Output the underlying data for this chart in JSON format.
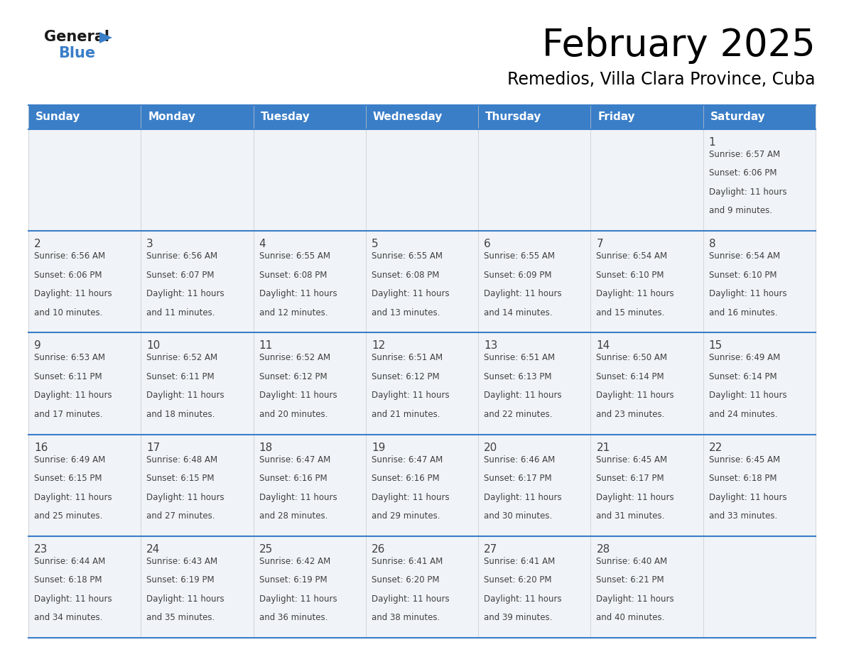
{
  "title": "February 2025",
  "subtitle": "Remedios, Villa Clara Province, Cuba",
  "header_bg": "#3a7ec8",
  "header_text_color": "#ffffff",
  "cell_bg": "#f0f4f8",
  "divider_color": "#3a7ec8",
  "text_color": "#404040",
  "day_headers": [
    "Sunday",
    "Monday",
    "Tuesday",
    "Wednesday",
    "Thursday",
    "Friday",
    "Saturday"
  ],
  "days": [
    {
      "day": 1,
      "col": 6,
      "row": 0,
      "sunrise": "6:57 AM",
      "sunset": "6:06 PM",
      "daylight_hours": 11,
      "daylight_minutes": 9
    },
    {
      "day": 2,
      "col": 0,
      "row": 1,
      "sunrise": "6:56 AM",
      "sunset": "6:06 PM",
      "daylight_hours": 11,
      "daylight_minutes": 10
    },
    {
      "day": 3,
      "col": 1,
      "row": 1,
      "sunrise": "6:56 AM",
      "sunset": "6:07 PM",
      "daylight_hours": 11,
      "daylight_minutes": 11
    },
    {
      "day": 4,
      "col": 2,
      "row": 1,
      "sunrise": "6:55 AM",
      "sunset": "6:08 PM",
      "daylight_hours": 11,
      "daylight_minutes": 12
    },
    {
      "day": 5,
      "col": 3,
      "row": 1,
      "sunrise": "6:55 AM",
      "sunset": "6:08 PM",
      "daylight_hours": 11,
      "daylight_minutes": 13
    },
    {
      "day": 6,
      "col": 4,
      "row": 1,
      "sunrise": "6:55 AM",
      "sunset": "6:09 PM",
      "daylight_hours": 11,
      "daylight_minutes": 14
    },
    {
      "day": 7,
      "col": 5,
      "row": 1,
      "sunrise": "6:54 AM",
      "sunset": "6:10 PM",
      "daylight_hours": 11,
      "daylight_minutes": 15
    },
    {
      "day": 8,
      "col": 6,
      "row": 1,
      "sunrise": "6:54 AM",
      "sunset": "6:10 PM",
      "daylight_hours": 11,
      "daylight_minutes": 16
    },
    {
      "day": 9,
      "col": 0,
      "row": 2,
      "sunrise": "6:53 AM",
      "sunset": "6:11 PM",
      "daylight_hours": 11,
      "daylight_minutes": 17
    },
    {
      "day": 10,
      "col": 1,
      "row": 2,
      "sunrise": "6:52 AM",
      "sunset": "6:11 PM",
      "daylight_hours": 11,
      "daylight_minutes": 18
    },
    {
      "day": 11,
      "col": 2,
      "row": 2,
      "sunrise": "6:52 AM",
      "sunset": "6:12 PM",
      "daylight_hours": 11,
      "daylight_minutes": 20
    },
    {
      "day": 12,
      "col": 3,
      "row": 2,
      "sunrise": "6:51 AM",
      "sunset": "6:12 PM",
      "daylight_hours": 11,
      "daylight_minutes": 21
    },
    {
      "day": 13,
      "col": 4,
      "row": 2,
      "sunrise": "6:51 AM",
      "sunset": "6:13 PM",
      "daylight_hours": 11,
      "daylight_minutes": 22
    },
    {
      "day": 14,
      "col": 5,
      "row": 2,
      "sunrise": "6:50 AM",
      "sunset": "6:14 PM",
      "daylight_hours": 11,
      "daylight_minutes": 23
    },
    {
      "day": 15,
      "col": 6,
      "row": 2,
      "sunrise": "6:49 AM",
      "sunset": "6:14 PM",
      "daylight_hours": 11,
      "daylight_minutes": 24
    },
    {
      "day": 16,
      "col": 0,
      "row": 3,
      "sunrise": "6:49 AM",
      "sunset": "6:15 PM",
      "daylight_hours": 11,
      "daylight_minutes": 25
    },
    {
      "day": 17,
      "col": 1,
      "row": 3,
      "sunrise": "6:48 AM",
      "sunset": "6:15 PM",
      "daylight_hours": 11,
      "daylight_minutes": 27
    },
    {
      "day": 18,
      "col": 2,
      "row": 3,
      "sunrise": "6:47 AM",
      "sunset": "6:16 PM",
      "daylight_hours": 11,
      "daylight_minutes": 28
    },
    {
      "day": 19,
      "col": 3,
      "row": 3,
      "sunrise": "6:47 AM",
      "sunset": "6:16 PM",
      "daylight_hours": 11,
      "daylight_minutes": 29
    },
    {
      "day": 20,
      "col": 4,
      "row": 3,
      "sunrise": "6:46 AM",
      "sunset": "6:17 PM",
      "daylight_hours": 11,
      "daylight_minutes": 30
    },
    {
      "day": 21,
      "col": 5,
      "row": 3,
      "sunrise": "6:45 AM",
      "sunset": "6:17 PM",
      "daylight_hours": 11,
      "daylight_minutes": 31
    },
    {
      "day": 22,
      "col": 6,
      "row": 3,
      "sunrise": "6:45 AM",
      "sunset": "6:18 PM",
      "daylight_hours": 11,
      "daylight_minutes": 33
    },
    {
      "day": 23,
      "col": 0,
      "row": 4,
      "sunrise": "6:44 AM",
      "sunset": "6:18 PM",
      "daylight_hours": 11,
      "daylight_minutes": 34
    },
    {
      "day": 24,
      "col": 1,
      "row": 4,
      "sunrise": "6:43 AM",
      "sunset": "6:19 PM",
      "daylight_hours": 11,
      "daylight_minutes": 35
    },
    {
      "day": 25,
      "col": 2,
      "row": 4,
      "sunrise": "6:42 AM",
      "sunset": "6:19 PM",
      "daylight_hours": 11,
      "daylight_minutes": 36
    },
    {
      "day": 26,
      "col": 3,
      "row": 4,
      "sunrise": "6:41 AM",
      "sunset": "6:20 PM",
      "daylight_hours": 11,
      "daylight_minutes": 38
    },
    {
      "day": 27,
      "col": 4,
      "row": 4,
      "sunrise": "6:41 AM",
      "sunset": "6:20 PM",
      "daylight_hours": 11,
      "daylight_minutes": 39
    },
    {
      "day": 28,
      "col": 5,
      "row": 4,
      "sunrise": "6:40 AM",
      "sunset": "6:21 PM",
      "daylight_hours": 11,
      "daylight_minutes": 40
    }
  ],
  "logo_general_color": "#1a1a1a",
  "logo_blue_color": "#3a7ec8",
  "logo_triangle_color": "#3a7ec8"
}
